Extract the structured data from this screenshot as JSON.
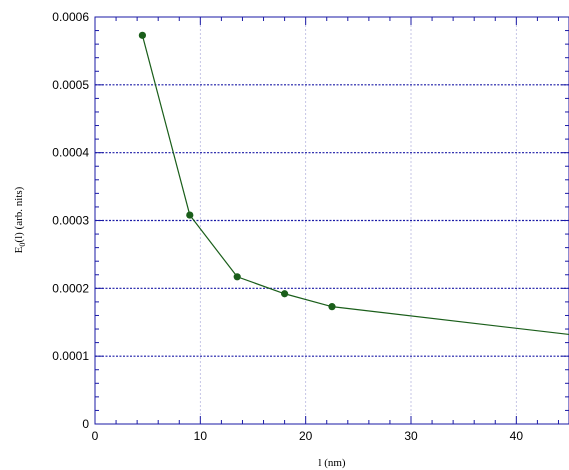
{
  "chart_data": {
    "type": "line",
    "xlabel": "l (nm)",
    "ylabel": {
      "prefix": "E",
      "subscript": "0",
      "suffix": "(l) (arb. nits)"
    },
    "xlim": [
      0,
      45
    ],
    "ylim": [
      0,
      0.0006
    ],
    "xticks": [
      0,
      10,
      20,
      30,
      40
    ],
    "xtick_labels": [
      "0",
      "10",
      "20",
      "30",
      "40"
    ],
    "yticks": [
      0,
      0.0001,
      0.0002,
      0.0003,
      0.0004,
      0.0005,
      0.0006
    ],
    "ytick_labels": [
      "0",
      "0.0001",
      "0.0002",
      "0.0003",
      "0.0004",
      "0.0005",
      "0.0006"
    ],
    "grid": true,
    "series": [
      {
        "color": "#1a5e1a",
        "marker": "circle",
        "points": [
          {
            "x": 4.5,
            "y": 0.000573
          },
          {
            "x": 9.0,
            "y": 0.000308
          },
          {
            "x": 13.5,
            "y": 0.000217
          },
          {
            "x": 18.0,
            "y": 0.000192
          },
          {
            "x": 22.5,
            "y": 0.000173
          }
        ],
        "line_extension": {
          "x": 45,
          "y": 0.000132
        }
      }
    ]
  }
}
